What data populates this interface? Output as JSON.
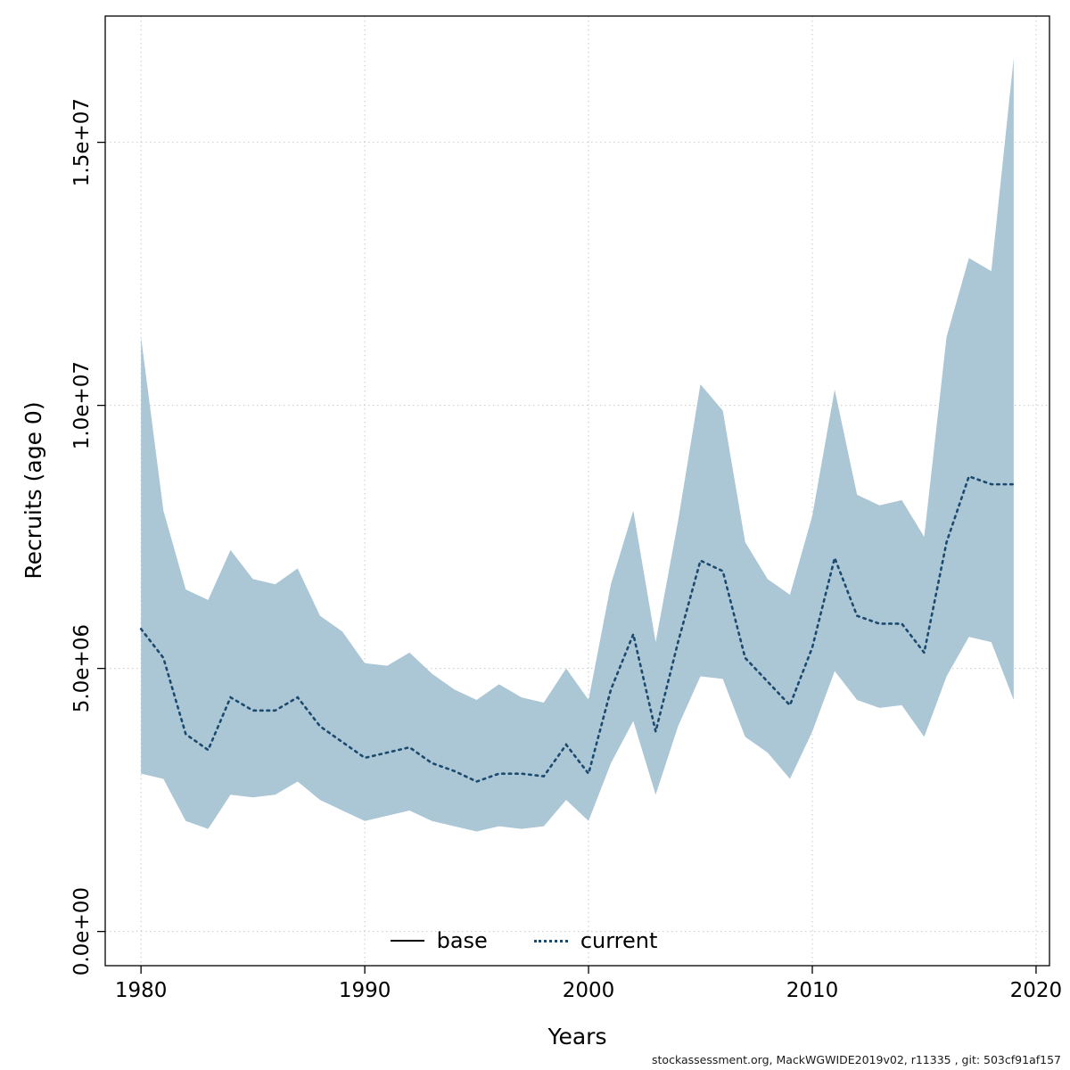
{
  "footer": {
    "text": "stockassessment.org, MackWGWIDE2019v02, r11335 , git: 503cf91af157"
  },
  "chart_data": {
    "type": "line",
    "title": "",
    "xlabel": "Years",
    "ylabel": "Recruits (age 0)",
    "grid": true,
    "legend_position": "bottom-center-inside",
    "x_ticks": [
      1980,
      1990,
      2000,
      2010,
      2020
    ],
    "y_ticks": [
      0,
      5000000,
      10000000,
      15000000
    ],
    "y_tick_labels": [
      "0.0e+00",
      "5.0e+06",
      "1.0e+07",
      "1.5e+07"
    ],
    "xlim": [
      1978.4,
      2020.6
    ],
    "ylim": [
      -650000,
      17400000
    ],
    "band_color": "#abc6d5",
    "line_color": "#1c4a6e",
    "grid_color": "#c9c9c9",
    "legend": [
      {
        "label": "base",
        "style": "solid",
        "color": "#000000"
      },
      {
        "label": "current",
        "style": "dotted",
        "color": "#1c4a6e"
      }
    ],
    "x": [
      1980,
      1981,
      1982,
      1983,
      1984,
      1985,
      1986,
      1987,
      1988,
      1989,
      1990,
      1991,
      1992,
      1993,
      1994,
      1995,
      1996,
      1997,
      1998,
      1999,
      2000,
      2001,
      2002,
      2003,
      2004,
      2005,
      2006,
      2007,
      2008,
      2009,
      2010,
      2011,
      2012,
      2013,
      2014,
      2015,
      2016,
      2017,
      2018,
      2019
    ],
    "series": [
      {
        "name": "current",
        "values": [
          5750000,
          5200000,
          3750000,
          3450000,
          4450000,
          4200000,
          4200000,
          4450000,
          3900000,
          3600000,
          3300000,
          3400000,
          3500000,
          3200000,
          3050000,
          2850000,
          3000000,
          3000000,
          2950000,
          3550000,
          3000000,
          4600000,
          5650000,
          3800000,
          5500000,
          7050000,
          6850000,
          5200000,
          4750000,
          4300000,
          5400000,
          7100000,
          6000000,
          5850000,
          5850000,
          5300000,
          7400000,
          8650000,
          8500000,
          8500000
        ]
      },
      {
        "name": "upper",
        "values": [
          11300000,
          8000000,
          6500000,
          6300000,
          7250000,
          6700000,
          6600000,
          6900000,
          6000000,
          5700000,
          5100000,
          5050000,
          5300000,
          4900000,
          4600000,
          4400000,
          4700000,
          4450000,
          4350000,
          5000000,
          4400000,
          6600000,
          8000000,
          5500000,
          7800000,
          10400000,
          9900000,
          7400000,
          6700000,
          6400000,
          7900000,
          10300000,
          8300000,
          8100000,
          8200000,
          7500000,
          11300000,
          12800000,
          12550000,
          16600000
        ]
      },
      {
        "name": "lower",
        "values": [
          3000000,
          2900000,
          2100000,
          1950000,
          2600000,
          2550000,
          2600000,
          2850000,
          2500000,
          2300000,
          2100000,
          2200000,
          2300000,
          2100000,
          2000000,
          1900000,
          2000000,
          1950000,
          2000000,
          2500000,
          2100000,
          3200000,
          4000000,
          2600000,
          3900000,
          4850000,
          4800000,
          3700000,
          3400000,
          2900000,
          3800000,
          4950000,
          4400000,
          4250000,
          4300000,
          3700000,
          4850000,
          5600000,
          5500000,
          4400000
        ]
      }
    ]
  }
}
